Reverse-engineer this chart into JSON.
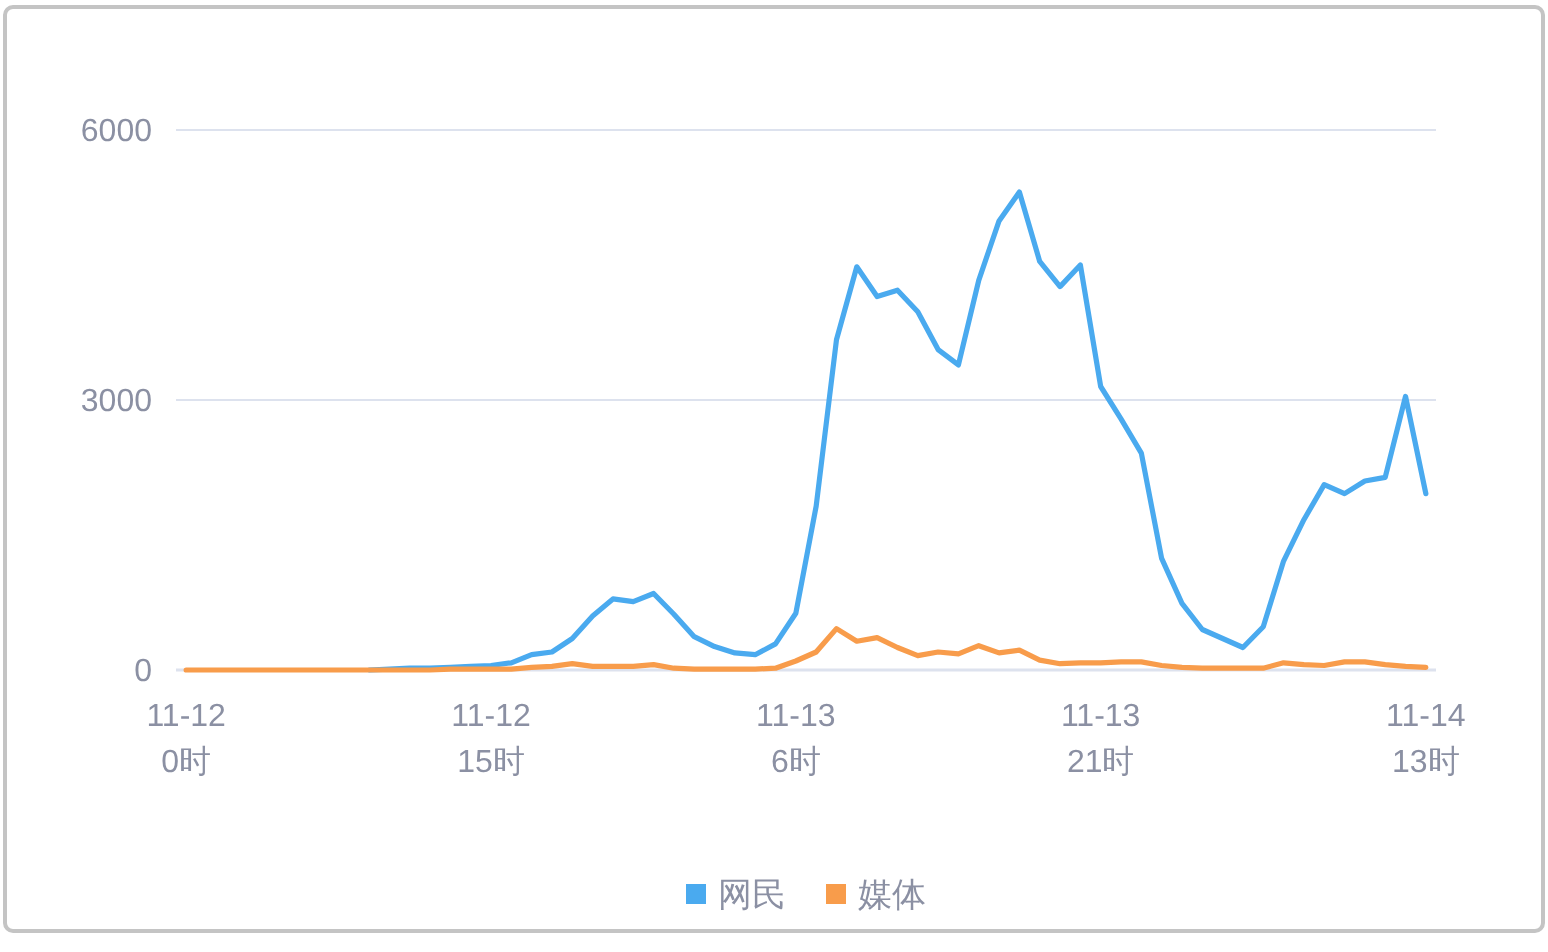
{
  "chart_data": {
    "type": "line",
    "categories": [
      "11-12 0时",
      null,
      null,
      null,
      null,
      null,
      null,
      null,
      null,
      null,
      null,
      null,
      null,
      null,
      null,
      "11-12 15时",
      null,
      null,
      null,
      null,
      null,
      null,
      null,
      null,
      null,
      null,
      null,
      null,
      null,
      null,
      "11-13 6时",
      null,
      null,
      null,
      null,
      null,
      null,
      null,
      null,
      null,
      null,
      null,
      null,
      null,
      null,
      "11-13 21时",
      null,
      null,
      null,
      null,
      null,
      null,
      null,
      null,
      null,
      null,
      null,
      null,
      null,
      null,
      null,
      "11-14 13时"
    ],
    "series": [
      {
        "name": "网民",
        "color": "#4aaaef",
        "values": [
          null,
          null,
          null,
          null,
          null,
          null,
          null,
          null,
          null,
          0,
          10,
          20,
          20,
          30,
          40,
          50,
          80,
          170,
          200,
          350,
          600,
          790,
          760,
          850,
          620,
          370,
          260,
          190,
          170,
          290,
          630,
          1820,
          3670,
          4480,
          4150,
          4220,
          3980,
          3560,
          3390,
          4330,
          4990,
          5310,
          4540,
          4260,
          4500,
          3150,
          2790,
          2410,
          1240,
          740,
          450,
          350,
          250,
          480,
          1210,
          1670,
          2060,
          1960,
          2100,
          2140,
          3040,
          1960
        ]
      },
      {
        "name": "媒体",
        "color": "#f89c4b",
        "values": [
          0,
          0,
          0,
          0,
          0,
          0,
          0,
          0,
          0,
          0,
          0,
          0,
          0,
          10,
          10,
          10,
          10,
          30,
          40,
          70,
          40,
          40,
          40,
          60,
          20,
          10,
          10,
          10,
          10,
          20,
          100,
          200,
          460,
          320,
          360,
          250,
          160,
          200,
          180,
          270,
          190,
          220,
          110,
          70,
          80,
          80,
          90,
          90,
          50,
          30,
          20,
          20,
          20,
          20,
          80,
          60,
          50,
          90,
          90,
          60,
          40,
          30
        ]
      }
    ],
    "ylim": [
      0,
      6000
    ],
    "yticks": [
      0,
      3000,
      6000
    ],
    "grid": "y",
    "legend": "bottom"
  }
}
